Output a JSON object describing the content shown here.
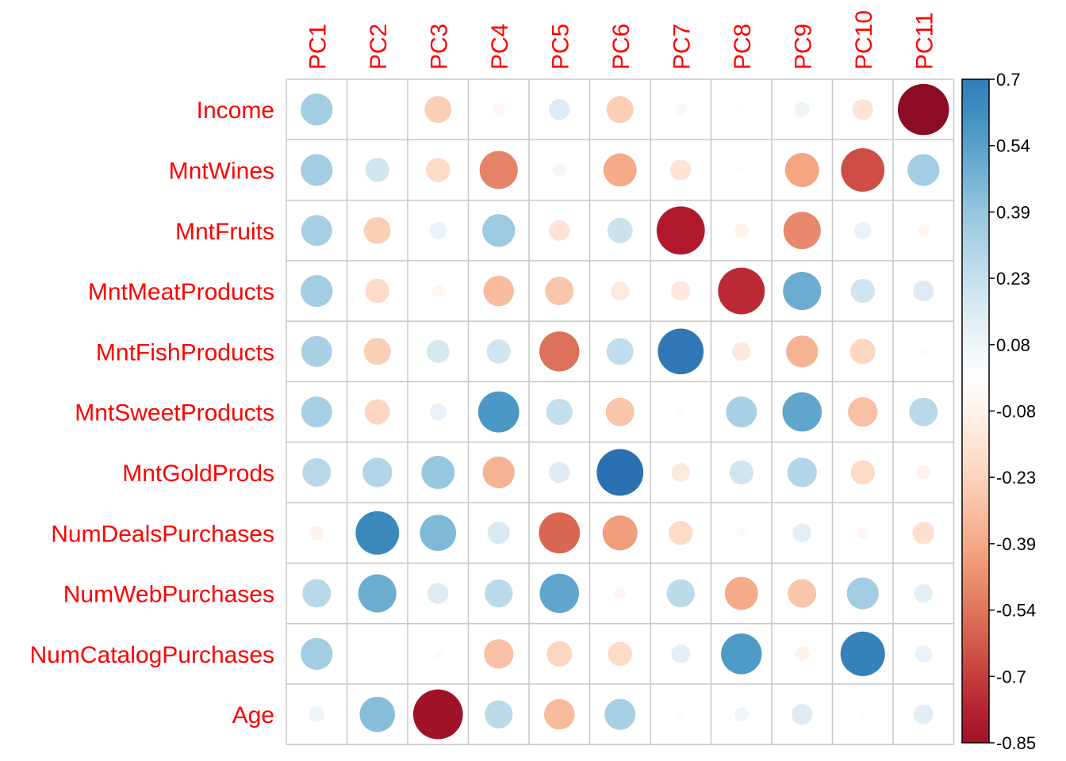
{
  "chart_data": {
    "type": "heatmap",
    "subtype": "correlation-circle-plot",
    "columns": [
      "PC1",
      "PC2",
      "PC3",
      "PC4",
      "PC5",
      "PC6",
      "PC7",
      "PC8",
      "PC9",
      "PC10",
      "PC11"
    ],
    "rows": [
      "Income",
      "MntWines",
      "MntFruits",
      "MntMeatProducts",
      "MntFishProducts",
      "MntSweetProducts",
      "MntGoldProds",
      "NumDealsPurchases",
      "NumWebPurchases",
      "NumCatalogPurchases",
      "Age"
    ],
    "values": [
      [
        0.35,
        0.01,
        -0.25,
        -0.05,
        0.15,
        -0.25,
        0.05,
        -0.02,
        0.08,
        -0.15,
        -0.9
      ],
      [
        0.35,
        0.2,
        -0.2,
        -0.5,
        0.06,
        -0.38,
        -0.15,
        -0.02,
        -0.4,
        -0.65,
        0.35
      ],
      [
        0.33,
        -0.25,
        0.1,
        0.37,
        -0.15,
        0.22,
        -0.8,
        -0.07,
        -0.48,
        0.1,
        -0.05
      ],
      [
        0.35,
        -0.2,
        -0.05,
        -0.32,
        -0.28,
        -0.12,
        -0.13,
        -0.75,
        0.5,
        0.2,
        0.15
      ],
      [
        0.33,
        -0.25,
        0.18,
        0.2,
        -0.55,
        0.25,
        0.72,
        -0.12,
        -0.35,
        -0.22,
        -0.02
      ],
      [
        0.33,
        -0.22,
        0.1,
        0.58,
        0.24,
        -0.28,
        -0.03,
        0.33,
        0.53,
        -0.3,
        0.28
      ],
      [
        0.28,
        0.3,
        0.38,
        -0.35,
        0.15,
        0.75,
        -0.12,
        0.2,
        0.3,
        -0.2,
        -0.07
      ],
      [
        -0.07,
        0.65,
        0.45,
        0.17,
        -0.58,
        -0.42,
        -0.2,
        -0.03,
        0.12,
        -0.05,
        -0.17
      ],
      [
        0.28,
        0.5,
        0.15,
        0.27,
        0.53,
        -0.05,
        0.27,
        -0.38,
        -0.28,
        0.35,
        0.12
      ],
      [
        0.35,
        0.01,
        -0.03,
        -0.3,
        -0.22,
        -0.2,
        0.12,
        0.57,
        -0.07,
        0.68,
        0.1
      ],
      [
        0.08,
        0.43,
        -0.85,
        0.27,
        -0.32,
        0.33,
        -0.03,
        0.07,
        0.15,
        0.02,
        0.13
      ]
    ],
    "colorbar": {
      "min": -0.85,
      "max": 0.7,
      "tick_labels": [
        "0.7",
        "0.54",
        "0.39",
        "0.23",
        "0.08",
        "-0.08",
        "-0.23",
        "-0.39",
        "-0.54",
        "-0.7",
        "-0.85"
      ]
    },
    "colors": {
      "label_color": "#ff0000",
      "grid_color": "#c8c8c8",
      "scale": [
        "#67001f",
        "#b2182b",
        "#d6604d",
        "#f4a582",
        "#fddbc7",
        "#ffffff",
        "#d1e5f0",
        "#92c5de",
        "#4393c3",
        "#2166ac",
        "#053061"
      ]
    }
  }
}
